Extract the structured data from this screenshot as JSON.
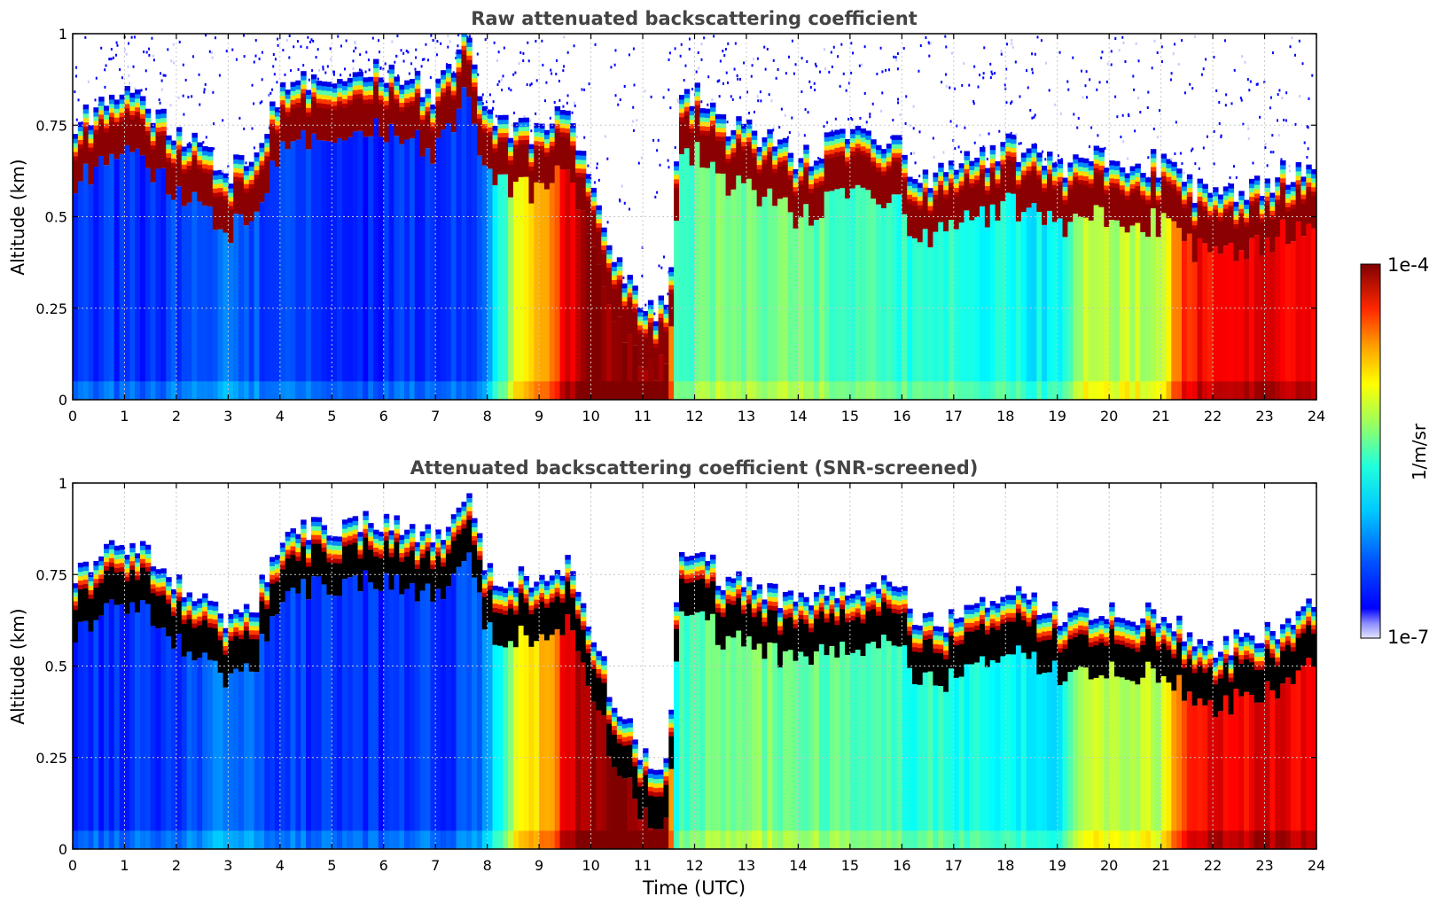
{
  "figure": {
    "xlabel": "Time (UTC)",
    "colorbar": {
      "label": "1/m/sr",
      "min_label": "1e-7",
      "max_label": "1e-4",
      "colormap": "jet",
      "scale": "log"
    }
  },
  "chart_data": [
    {
      "type": "heatmap",
      "title": "Raw attenuated backscattering coefficient",
      "xlabel": "",
      "ylabel": "Altitude (km)",
      "xlim": [
        0,
        24
      ],
      "ylim": [
        0,
        1
      ],
      "x_ticks": [
        "0",
        "1",
        "2",
        "3",
        "4",
        "5",
        "6",
        "7",
        "8",
        "9",
        "10",
        "11",
        "12",
        "13",
        "14",
        "15",
        "16",
        "17",
        "18",
        "19",
        "20",
        "21",
        "22",
        "23",
        "24"
      ],
      "y_ticks": [
        "0",
        "0.25",
        "0.5",
        "0.75",
        "1"
      ],
      "grid": true,
      "zscale": "log",
      "zlim": [
        1e-07,
        0.0001
      ],
      "screened": false,
      "layer_top_km": [
        [
          0,
          0.72
        ],
        [
          1,
          0.8
        ],
        [
          2,
          0.7
        ],
        [
          3,
          0.58
        ],
        [
          3.5,
          0.62
        ],
        [
          4,
          0.8
        ],
        [
          5,
          0.85
        ],
        [
          6,
          0.85
        ],
        [
          7,
          0.8
        ],
        [
          7.6,
          0.95
        ],
        [
          8,
          0.72
        ],
        [
          9,
          0.68
        ],
        [
          9.5,
          0.75
        ],
        [
          10,
          0.55
        ],
        [
          10.5,
          0.35
        ],
        [
          11,
          0.22
        ],
        [
          11.5,
          0.2
        ],
        [
          11.7,
          0.75
        ],
        [
          12,
          0.8
        ],
        [
          12.5,
          0.7
        ],
        [
          13,
          0.7
        ],
        [
          14,
          0.62
        ],
        [
          15,
          0.68
        ],
        [
          16,
          0.68
        ],
        [
          16.2,
          0.56
        ],
        [
          17,
          0.58
        ],
        [
          18,
          0.65
        ],
        [
          19,
          0.6
        ],
        [
          20,
          0.62
        ],
        [
          21,
          0.6
        ],
        [
          22,
          0.5
        ],
        [
          23,
          0.55
        ],
        [
          24,
          0.62
        ]
      ],
      "background_level_by_hour": [
        [
          0,
          "blue"
        ],
        [
          3,
          "light-blue"
        ],
        [
          5,
          "blue"
        ],
        [
          8,
          "cyan"
        ],
        [
          8.5,
          "yellow"
        ],
        [
          9.5,
          "red"
        ],
        [
          10,
          "dark-red"
        ],
        [
          11.6,
          "cyan-green"
        ],
        [
          13,
          "green"
        ],
        [
          16,
          "cyan"
        ],
        [
          19,
          "cyan"
        ],
        [
          20,
          "yellow-green"
        ],
        [
          21.2,
          "orange"
        ],
        [
          21.8,
          "red"
        ],
        [
          24,
          "red"
        ]
      ],
      "data_gap_utc": [
        10.8,
        11.5
      ]
    },
    {
      "type": "heatmap",
      "title": "Attenuated backscattering coefficient (SNR-screened)",
      "xlabel": "Time (UTC)",
      "ylabel": "Altitude (km)",
      "xlim": [
        0,
        24
      ],
      "ylim": [
        0,
        1
      ],
      "x_ticks": [
        "0",
        "1",
        "2",
        "3",
        "4",
        "5",
        "6",
        "7",
        "8",
        "9",
        "10",
        "11",
        "12",
        "13",
        "14",
        "15",
        "16",
        "17",
        "18",
        "19",
        "20",
        "21",
        "22",
        "23",
        "24"
      ],
      "y_ticks": [
        "0",
        "0.25",
        "0.5",
        "0.75",
        "1"
      ],
      "grid": true,
      "zscale": "log",
      "zlim": [
        1e-07,
        0.0001
      ],
      "screened": true,
      "saturated_values_shown_in": "black",
      "layer_top_km": [
        [
          0,
          0.72
        ],
        [
          1,
          0.8
        ],
        [
          2,
          0.7
        ],
        [
          3,
          0.58
        ],
        [
          3.5,
          0.62
        ],
        [
          4,
          0.8
        ],
        [
          5,
          0.85
        ],
        [
          6,
          0.85
        ],
        [
          7,
          0.8
        ],
        [
          7.6,
          0.95
        ],
        [
          8,
          0.72
        ],
        [
          9,
          0.68
        ],
        [
          9.5,
          0.75
        ],
        [
          10,
          0.55
        ],
        [
          10.5,
          0.35
        ],
        [
          11,
          0.22
        ],
        [
          11.5,
          0.2
        ],
        [
          11.7,
          0.75
        ],
        [
          12,
          0.8
        ],
        [
          12.5,
          0.7
        ],
        [
          13,
          0.7
        ],
        [
          14,
          0.62
        ],
        [
          15,
          0.68
        ],
        [
          16,
          0.68
        ],
        [
          16.2,
          0.56
        ],
        [
          17,
          0.58
        ],
        [
          18,
          0.65
        ],
        [
          19,
          0.6
        ],
        [
          20,
          0.62
        ],
        [
          21,
          0.6
        ],
        [
          22,
          0.5
        ],
        [
          23,
          0.55
        ],
        [
          24,
          0.62
        ]
      ]
    }
  ]
}
